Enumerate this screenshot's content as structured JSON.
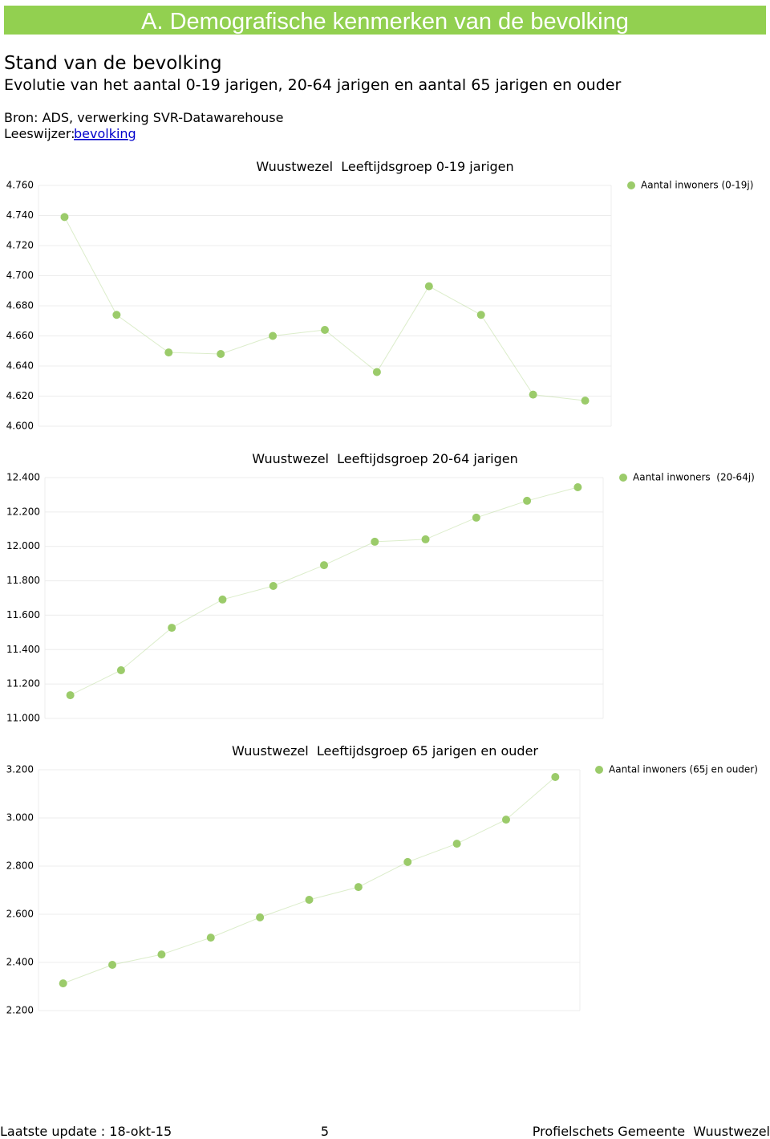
{
  "header": {
    "title": "A. Demografische kenmerken van de bevolking"
  },
  "heading": "Stand van de bevolking",
  "subheading": "Evolutie van het aantal 0-19 jarigen, 20-64 jarigen en aantal 65 jarigen en ouder",
  "source": "Bron: ADS, verwerking SVR-Datawarehouse",
  "guide": {
    "label": "Leeswijzer:",
    "link": "bevolking"
  },
  "chart_data": [
    {
      "type": "line",
      "title": "Wuustwezel  Leeftijdsgroep 0-19 jarigen",
      "categories": [
        null,
        null,
        null,
        null,
        null,
        null,
        null,
        null,
        null,
        null,
        null
      ],
      "series": [
        {
          "name": "Aantal inwoners (0-19j)",
          "color": "#9bcb6a",
          "values": [
            4739,
            4674,
            4649,
            4648,
            4660,
            4664,
            4636,
            4693,
            4674,
            4621,
            4617
          ]
        }
      ],
      "ylim": [
        4600,
        4760
      ],
      "yticks": [
        {
          "value": 4600,
          "label": "4.600"
        },
        {
          "value": 4620,
          "label": "4.620"
        },
        {
          "value": 4640,
          "label": "4.640"
        },
        {
          "value": 4660,
          "label": "4.660"
        },
        {
          "value": 4680,
          "label": "4.680"
        },
        {
          "value": 4700,
          "label": "4.700"
        },
        {
          "value": 4720,
          "label": "4.720"
        },
        {
          "value": 4740,
          "label": "4.740"
        },
        {
          "value": 4760,
          "label": "4.760"
        }
      ],
      "grid": true,
      "legend": "top-right"
    },
    {
      "type": "line",
      "title": "Wuustwezel  Leeftijdsgroep 20-64 jarigen",
      "categories": [
        null,
        null,
        null,
        null,
        null,
        null,
        null,
        null,
        null,
        null,
        null
      ],
      "series": [
        {
          "name": "Aantal inwoners  (20-64j)",
          "color": "#9bcb6a",
          "values": [
            11135,
            11280,
            11527,
            11691,
            11770,
            11891,
            12027,
            12041,
            12167,
            12265,
            12344
          ]
        }
      ],
      "ylim": [
        11000,
        12400
      ],
      "yticks": [
        {
          "value": 11000,
          "label": "11.000"
        },
        {
          "value": 11200,
          "label": "11.200"
        },
        {
          "value": 11400,
          "label": "11.400"
        },
        {
          "value": 11600,
          "label": "11.600"
        },
        {
          "value": 11800,
          "label": "11.800"
        },
        {
          "value": 12000,
          "label": "12.000"
        },
        {
          "value": 12200,
          "label": "12.200"
        },
        {
          "value": 12400,
          "label": "12.400"
        }
      ],
      "grid": true,
      "legend": "top-right"
    },
    {
      "type": "line",
      "title": "Wuustwezel  Leeftijdsgroep 65 jarigen en ouder",
      "categories": [
        null,
        null,
        null,
        null,
        null,
        null,
        null,
        null,
        null,
        null,
        null
      ],
      "series": [
        {
          "name": "Aantal inwoners (65j en ouder)",
          "color": "#9bcb6a",
          "values": [
            2313,
            2390,
            2433,
            2503,
            2587,
            2660,
            2713,
            2817,
            2893,
            2993,
            3170
          ]
        }
      ],
      "ylim": [
        2200,
        3200
      ],
      "yticks": [
        {
          "value": 2200,
          "label": "2.200"
        },
        {
          "value": 2400,
          "label": "2.400"
        },
        {
          "value": 2600,
          "label": "2.600"
        },
        {
          "value": 2800,
          "label": "2.800"
        },
        {
          "value": 3000,
          "label": "3.000"
        },
        {
          "value": 3200,
          "label": "3.200"
        }
      ],
      "grid": true,
      "legend": "top-right"
    }
  ],
  "footer": {
    "updated": "Laatste update : 18-okt-15",
    "page": "5",
    "publication": "Profielschets Gemeente  Wuustwezel"
  }
}
